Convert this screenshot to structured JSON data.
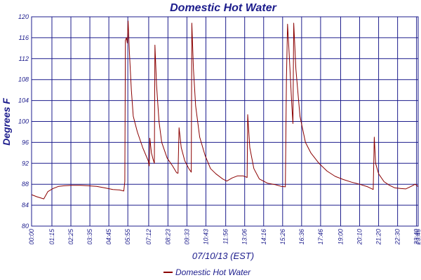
{
  "chart_data": {
    "type": "line",
    "title": "Domestic Hot Water",
    "xlabel": "07/10/13 (EST)",
    "ylabel": "Degrees F",
    "ylim": [
      80,
      120
    ],
    "y_ticks": [
      "80",
      "84",
      "88",
      "92",
      "96",
      "100",
      "104",
      "108",
      "112",
      "116",
      "120"
    ],
    "x_ticks": [
      "00:00",
      "01:15",
      "02:25",
      "03:35",
      "04:45",
      "05:55",
      "07:12",
      "08:23",
      "09:33",
      "10:43",
      "11:56",
      "13:06",
      "14:16",
      "15:26",
      "16:36",
      "17:46",
      "19:00",
      "20:10",
      "21:20",
      "22:30",
      "23:40",
      "23:46"
    ],
    "grid": true,
    "legend_position": "bottom",
    "colors": {
      "series": "#8b0000",
      "grid": "#1c1c8c",
      "text": "#1c1c8c"
    },
    "series": [
      {
        "name": "Domestic Hot Water",
        "points": [
          [
            "00:00",
            86.0
          ],
          [
            "00:20",
            85.6
          ],
          [
            "00:45",
            85.2
          ],
          [
            "01:00",
            86.6
          ],
          [
            "01:20",
            87.2
          ],
          [
            "01:40",
            87.6
          ],
          [
            "02:00",
            87.7
          ],
          [
            "02:30",
            87.8
          ],
          [
            "03:00",
            87.8
          ],
          [
            "03:30",
            87.7
          ],
          [
            "04:00",
            87.6
          ],
          [
            "04:30",
            87.3
          ],
          [
            "05:00",
            87.0
          ],
          [
            "05:25",
            86.9
          ],
          [
            "05:40",
            86.7
          ],
          [
            "05:44",
            88.5
          ],
          [
            "05:46",
            115.5
          ],
          [
            "05:50",
            116.0
          ],
          [
            "05:53",
            115.0
          ],
          [
            "05:56",
            119.2
          ],
          [
            "06:01",
            113.0
          ],
          [
            "06:08",
            106.0
          ],
          [
            "06:15",
            101.0
          ],
          [
            "06:30",
            98.0
          ],
          [
            "06:50",
            95.0
          ],
          [
            "07:10",
            92.5
          ],
          [
            "07:14",
            91.5
          ],
          [
            "07:16",
            96.8
          ],
          [
            "07:22",
            94.0
          ],
          [
            "07:28",
            92.8
          ],
          [
            "07:33",
            92.0
          ],
          [
            "07:35",
            114.6
          ],
          [
            "07:41",
            107.0
          ],
          [
            "07:50",
            100.0
          ],
          [
            "08:00",
            96.0
          ],
          [
            "08:20",
            93.0
          ],
          [
            "08:40",
            91.5
          ],
          [
            "08:55",
            90.2
          ],
          [
            "09:00",
            90.1
          ],
          [
            "09:04",
            98.8
          ],
          [
            "09:12",
            95.0
          ],
          [
            "09:25",
            92.5
          ],
          [
            "09:40",
            91.0
          ],
          [
            "09:49",
            90.3
          ],
          [
            "09:51",
            118.8
          ],
          [
            "09:57",
            110.0
          ],
          [
            "10:05",
            103.0
          ],
          [
            "10:20",
            97.0
          ],
          [
            "10:40",
            93.5
          ],
          [
            "11:00",
            91.0
          ],
          [
            "11:20",
            90.0
          ],
          [
            "11:45",
            89.0
          ],
          [
            "12:00",
            88.6
          ],
          [
            "12:20",
            89.2
          ],
          [
            "12:40",
            89.6
          ],
          [
            "13:00",
            89.6
          ],
          [
            "13:15",
            89.3
          ],
          [
            "13:17",
            101.3
          ],
          [
            "13:25",
            95.0
          ],
          [
            "13:40",
            91.0
          ],
          [
            "14:00",
            89.0
          ],
          [
            "14:30",
            88.2
          ],
          [
            "15:00",
            87.9
          ],
          [
            "15:20",
            87.6
          ],
          [
            "15:36",
            87.5
          ],
          [
            "15:40",
            108.0
          ],
          [
            "15:44",
            118.6
          ],
          [
            "15:50",
            113.0
          ],
          [
            "16:00",
            103.0
          ],
          [
            "16:04",
            99.6
          ],
          [
            "16:07",
            118.8
          ],
          [
            "16:15",
            110.0
          ],
          [
            "16:30",
            101.0
          ],
          [
            "16:50",
            96.0
          ],
          [
            "17:10",
            94.0
          ],
          [
            "17:40",
            92.0
          ],
          [
            "18:10",
            90.5
          ],
          [
            "18:40",
            89.5
          ],
          [
            "19:10",
            88.9
          ],
          [
            "19:40",
            88.4
          ],
          [
            "20:10",
            88.0
          ],
          [
            "20:40",
            87.5
          ],
          [
            "21:00",
            87.0
          ],
          [
            "21:04",
            97.0
          ],
          [
            "21:09",
            92.0
          ],
          [
            "21:20",
            90.0
          ],
          [
            "21:40",
            88.5
          ],
          [
            "22:00",
            87.8
          ],
          [
            "22:20",
            87.3
          ],
          [
            "22:40",
            87.2
          ],
          [
            "23:00",
            87.1
          ],
          [
            "23:20",
            87.6
          ],
          [
            "23:35",
            88.0
          ],
          [
            "23:40",
            87.8
          ],
          [
            "23:46",
            87.5
          ]
        ]
      }
    ]
  }
}
